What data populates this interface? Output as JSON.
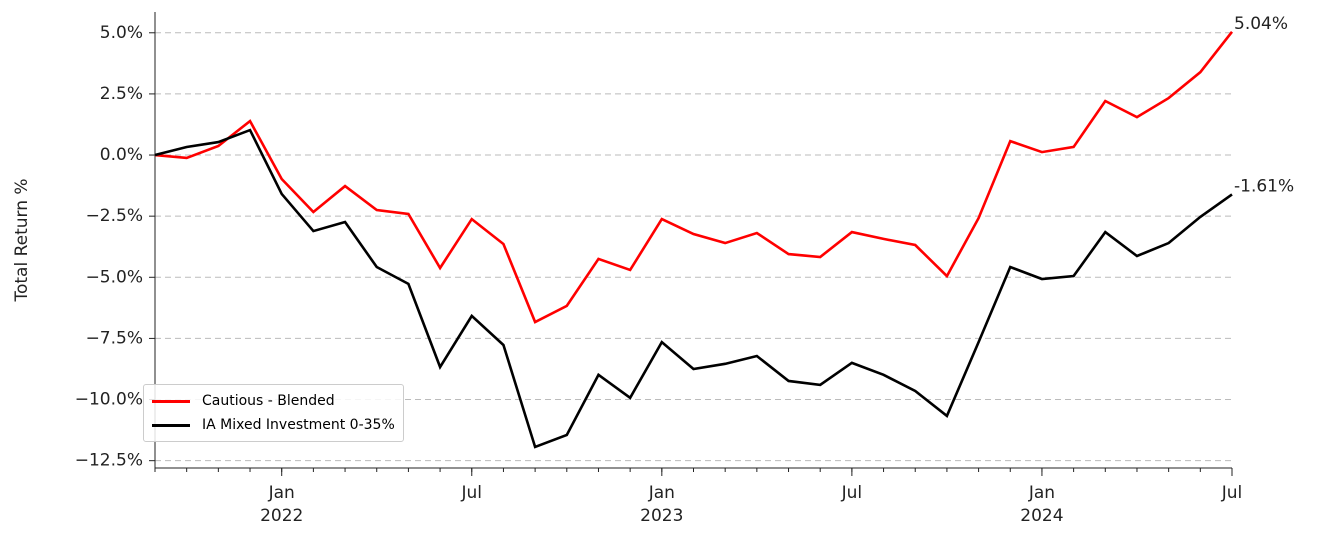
{
  "chart_data": {
    "type": "line",
    "ylabel": "Total Return %",
    "x": [
      "2021-09",
      "2021-10",
      "2021-11",
      "2021-12",
      "2022-01",
      "2022-02",
      "2022-03",
      "2022-04",
      "2022-05",
      "2022-06",
      "2022-07",
      "2022-08",
      "2022-09",
      "2022-10",
      "2022-11",
      "2022-12",
      "2023-01",
      "2023-02",
      "2023-03",
      "2023-04",
      "2023-05",
      "2023-06",
      "2023-07",
      "2023-08",
      "2023-09",
      "2023-10",
      "2023-11",
      "2023-12",
      "2024-01",
      "2024-02",
      "2024-03",
      "2024-04",
      "2024-05",
      "2024-06",
      "2024-07"
    ],
    "series": [
      {
        "name": "Cautious - Blended",
        "color": "#ff0000",
        "values": [
          0,
          -0.12,
          0.37,
          1.39,
          -0.98,
          -2.33,
          -1.27,
          -2.25,
          -2.41,
          -4.62,
          -2.62,
          -3.64,
          -6.83,
          -6.17,
          -4.25,
          -4.7,
          -2.62,
          -3.23,
          -3.6,
          -3.19,
          -4.05,
          -4.17,
          -3.15,
          -3.43,
          -3.68,
          -4.95,
          -2.58,
          0.57,
          0.12,
          0.33,
          2.21,
          1.55,
          2.33,
          3.39,
          5.04
        ],
        "value_labels": [
          null,
          null,
          null,
          null,
          null,
          null,
          null,
          null,
          null,
          null,
          null,
          null,
          null,
          null,
          null,
          null,
          null,
          null,
          null,
          null,
          null,
          null,
          null,
          null,
          null,
          null,
          null,
          null,
          null,
          null,
          null,
          null,
          null,
          null,
          "5.04%"
        ]
      },
      {
        "name": "IA Mixed Investment 0-35%",
        "color": "#000000",
        "values": [
          0,
          0.33,
          0.53,
          1.02,
          -1.59,
          -3.11,
          -2.74,
          -4.58,
          -5.27,
          -8.67,
          -6.58,
          -7.77,
          -11.94,
          -11.45,
          -8.99,
          -9.93,
          -7.65,
          -8.75,
          -8.54,
          -8.22,
          -9.24,
          -9.4,
          -8.5,
          -8.99,
          -9.65,
          -10.67,
          -7.65,
          -4.58,
          -5.07,
          -4.95,
          -3.15,
          -4.13,
          -3.6,
          -2.53,
          -1.61
        ],
        "value_labels": [
          null,
          null,
          null,
          null,
          null,
          null,
          null,
          null,
          null,
          null,
          null,
          null,
          null,
          null,
          null,
          null,
          null,
          null,
          null,
          null,
          null,
          null,
          null,
          null,
          null,
          null,
          null,
          null,
          null,
          null,
          null,
          null,
          null,
          null,
          "-1.61%"
        ]
      }
    ],
    "xlim": [
      "2021-09",
      "2024-07"
    ],
    "xticks": [
      {
        "value": "2022-01",
        "label": "Jan\n2022"
      },
      {
        "value": "2022-07",
        "label": "Jul"
      },
      {
        "value": "2023-01",
        "label": "Jan\n2023"
      },
      {
        "value": "2023-07",
        "label": "Jul"
      },
      {
        "value": "2024-01",
        "label": "Jan\n2024"
      },
      {
        "value": "2024-07",
        "label": "Jul"
      }
    ],
    "ylim": [
      -12.8,
      5.85
    ],
    "yticks": [
      {
        "value": 5,
        "label": "5.0%"
      },
      {
        "value": 2.5,
        "label": "2.5%"
      },
      {
        "value": 0,
        "label": "0.0%"
      },
      {
        "value": -2.5,
        "label": "−2.5%"
      },
      {
        "value": -5,
        "label": "−5.0%"
      },
      {
        "value": -7.5,
        "label": "−7.5%"
      },
      {
        "value": -10,
        "label": "−10.0%"
      },
      {
        "value": -12.5,
        "label": "−12.5%"
      }
    ],
    "grid": "y",
    "legend": "lower left"
  }
}
